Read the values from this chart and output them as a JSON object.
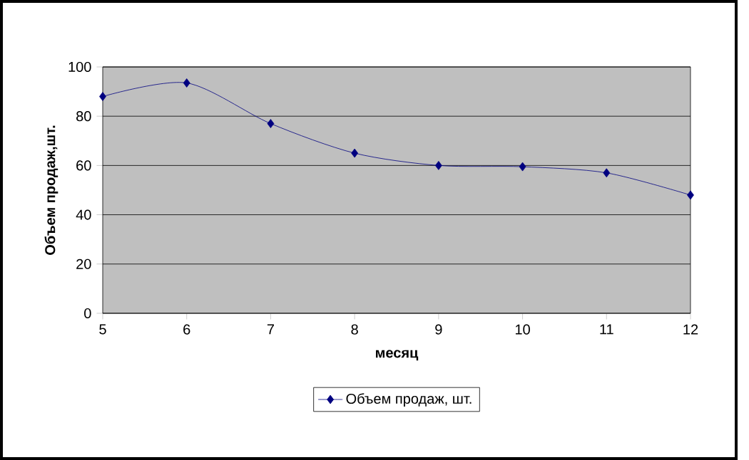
{
  "chart_data": {
    "type": "line",
    "xlabel": "месяц",
    "ylabel": "Объем продаж,шт.",
    "x": [
      5,
      6,
      7,
      8,
      9,
      10,
      11,
      12
    ],
    "series": [
      {
        "name": "Объем продаж, шт.",
        "color": "#000080",
        "values": [
          88,
          93.5,
          77,
          65,
          60,
          59.5,
          57,
          48
        ]
      }
    ],
    "xlim": [
      5,
      12
    ],
    "xticks": [
      5,
      6,
      7,
      8,
      9,
      10,
      11,
      12
    ],
    "ylim": [
      0,
      100
    ],
    "yticks": [
      0,
      20,
      40,
      60,
      80,
      100
    ],
    "grid": "y",
    "legend": "bottom",
    "marker": "diamond",
    "line_style": "solid"
  }
}
